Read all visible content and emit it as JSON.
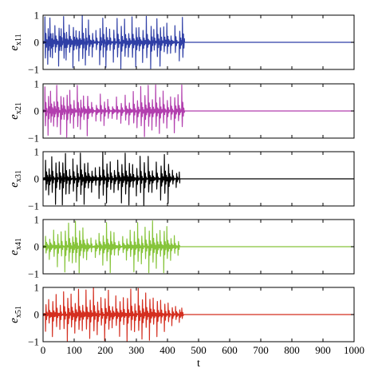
{
  "chart_data": {
    "type": "line",
    "xlabel": "t",
    "xlim": [
      0,
      1000
    ],
    "x_ticks": [
      "0",
      "100",
      "200",
      "300",
      "400",
      "500",
      "600",
      "700",
      "800",
      "900",
      "1000"
    ],
    "panels": [
      {
        "ylabel_main": "e",
        "ylabel_sub": "x11",
        "ylim": [
          -1,
          1
        ],
        "y_ticks": [
          "1",
          "0",
          "−1"
        ],
        "color": "#2f3fa6",
        "settle_time": 455,
        "events": [
          [
            6,
            0.9
          ],
          [
            15,
            -0.8
          ],
          [
            22,
            0.95
          ],
          [
            30,
            -0.5
          ],
          [
            38,
            0.6
          ],
          [
            50,
            -0.9
          ],
          [
            58,
            0.4
          ],
          [
            66,
            0.95
          ],
          [
            74,
            -0.6
          ],
          [
            84,
            0.7
          ],
          [
            96,
            -0.95
          ],
          [
            106,
            0.5
          ],
          [
            115,
            -0.7
          ],
          [
            126,
            0.95
          ],
          [
            136,
            -0.85
          ],
          [
            146,
            0.85
          ],
          [
            158,
            -0.5
          ],
          [
            170,
            0.4
          ],
          [
            182,
            -0.8
          ],
          [
            192,
            0.9
          ],
          [
            202,
            -0.95
          ],
          [
            214,
            0.45
          ],
          [
            226,
            -0.7
          ],
          [
            238,
            0.85
          ],
          [
            250,
            -0.95
          ],
          [
            262,
            0.85
          ],
          [
            274,
            -0.55
          ],
          [
            286,
            0.95
          ],
          [
            298,
            -0.9
          ],
          [
            308,
            0.6
          ],
          [
            320,
            -0.75
          ],
          [
            332,
            0.95
          ],
          [
            346,
            -0.95
          ],
          [
            356,
            0.5
          ],
          [
            366,
            0.85
          ],
          [
            376,
            -0.9
          ],
          [
            388,
            0.55
          ],
          [
            398,
            0.7
          ],
          [
            410,
            -0.4
          ],
          [
            424,
            0.6
          ],
          [
            438,
            -0.7
          ],
          [
            448,
            0.95
          ]
        ]
      },
      {
        "ylabel_main": "e",
        "ylabel_sub": "x21",
        "ylim": [
          -1,
          1
        ],
        "y_ticks": [
          "1",
          "0",
          "−1"
        ],
        "color": "#b23fae",
        "settle_time": 455,
        "events": [
          [
            6,
            0.85
          ],
          [
            16,
            -0.9
          ],
          [
            24,
            0.7
          ],
          [
            34,
            -0.6
          ],
          [
            44,
            0.95
          ],
          [
            56,
            -0.85
          ],
          [
            66,
            0.5
          ],
          [
            76,
            -0.95
          ],
          [
            86,
            0.8
          ],
          [
            98,
            -0.6
          ],
          [
            110,
            0.9
          ],
          [
            120,
            -0.7
          ],
          [
            130,
            0.6
          ],
          [
            142,
            -0.9
          ],
          [
            156,
            0.3
          ],
          [
            170,
            -0.4
          ],
          [
            184,
            0.6
          ],
          [
            196,
            -0.5
          ],
          [
            208,
            0.4
          ],
          [
            222,
            -0.3
          ],
          [
            236,
            0.5
          ],
          [
            250,
            -0.45
          ],
          [
            264,
            0.6
          ],
          [
            276,
            -0.5
          ],
          [
            290,
            0.7
          ],
          [
            302,
            -0.6
          ],
          [
            314,
            0.9
          ],
          [
            326,
            -0.95
          ],
          [
            338,
            0.95
          ],
          [
            350,
            -0.7
          ],
          [
            362,
            0.95
          ],
          [
            374,
            -0.8
          ],
          [
            386,
            0.7
          ],
          [
            398,
            -0.6
          ],
          [
            410,
            0.5
          ],
          [
            422,
            -0.8
          ],
          [
            434,
            0.6
          ],
          [
            446,
            0.95
          ]
        ]
      },
      {
        "ylabel_main": "e",
        "ylabel_sub": "x31",
        "ylim": [
          -1,
          1
        ],
        "y_ticks": [
          "1",
          "0",
          "−1"
        ],
        "color": "#000000",
        "settle_time": 440,
        "events": [
          [
            8,
            0.7
          ],
          [
            18,
            -0.6
          ],
          [
            28,
            0.8
          ],
          [
            40,
            -0.9
          ],
          [
            52,
            0.6
          ],
          [
            62,
            -0.95
          ],
          [
            72,
            0.95
          ],
          [
            84,
            -0.5
          ],
          [
            96,
            0.7
          ],
          [
            108,
            -0.8
          ],
          [
            120,
            0.95
          ],
          [
            132,
            -0.95
          ],
          [
            144,
            0.6
          ],
          [
            156,
            -0.5
          ],
          [
            168,
            0.4
          ],
          [
            180,
            -0.7
          ],
          [
            192,
            0.95
          ],
          [
            204,
            -0.85
          ],
          [
            216,
            0.6
          ],
          [
            228,
            -0.5
          ],
          [
            240,
            0.7
          ],
          [
            252,
            -0.9
          ],
          [
            264,
            0.95
          ],
          [
            276,
            -0.95
          ],
          [
            288,
            0.5
          ],
          [
            300,
            -0.6
          ],
          [
            312,
            0.8
          ],
          [
            324,
            -0.95
          ],
          [
            338,
            0.85
          ],
          [
            350,
            -0.5
          ],
          [
            364,
            0.6
          ],
          [
            378,
            -0.8
          ],
          [
            390,
            0.9
          ],
          [
            402,
            -0.9
          ],
          [
            416,
            0.3
          ],
          [
            428,
            -0.3
          ],
          [
            438,
            0.25
          ]
        ]
      },
      {
        "ylabel_main": "e",
        "ylabel_sub": "x41",
        "ylim": [
          -1,
          1
        ],
        "y_ticks": [
          "1",
          "0",
          "−1"
        ],
        "color": "#86c43a",
        "settle_time": 440,
        "events": [
          [
            8,
            0.4
          ],
          [
            20,
            -0.5
          ],
          [
            34,
            0.6
          ],
          [
            46,
            -0.7
          ],
          [
            58,
            0.5
          ],
          [
            70,
            -0.9
          ],
          [
            82,
            0.85
          ],
          [
            94,
            -0.6
          ],
          [
            104,
            0.95
          ],
          [
            116,
            -0.95
          ],
          [
            128,
            0.7
          ],
          [
            140,
            -0.5
          ],
          [
            154,
            0.3
          ],
          [
            168,
            -0.4
          ],
          [
            180,
            0.5
          ],
          [
            192,
            -0.7
          ],
          [
            204,
            0.9
          ],
          [
            216,
            -0.95
          ],
          [
            228,
            0.5
          ],
          [
            242,
            -0.3
          ],
          [
            256,
            0.4
          ],
          [
            268,
            -0.5
          ],
          [
            280,
            0.6
          ],
          [
            292,
            -0.9
          ],
          [
            304,
            0.85
          ],
          [
            316,
            -0.6
          ],
          [
            328,
            0.7
          ],
          [
            340,
            -0.95
          ],
          [
            352,
            0.95
          ],
          [
            364,
            -0.8
          ],
          [
            376,
            0.6
          ],
          [
            388,
            -0.95
          ],
          [
            398,
            0.8
          ],
          [
            410,
            -0.5
          ],
          [
            422,
            0.4
          ],
          [
            434,
            -0.3
          ]
        ]
      },
      {
        "ylabel_main": "e",
        "ylabel_sub": "x51",
        "ylim": [
          -1,
          1
        ],
        "y_ticks": [
          "1",
          "0",
          "−1"
        ],
        "color": "#d42e1f",
        "settle_time": 452,
        "events": [
          [
            8,
            -0.6
          ],
          [
            18,
            0.6
          ],
          [
            30,
            -0.8
          ],
          [
            42,
            0.7
          ],
          [
            54,
            -0.5
          ],
          [
            66,
            0.8
          ],
          [
            78,
            -0.95
          ],
          [
            90,
            0.75
          ],
          [
            102,
            -0.7
          ],
          [
            114,
            0.95
          ],
          [
            126,
            -0.6
          ],
          [
            138,
            0.9
          ],
          [
            150,
            -0.85
          ],
          [
            162,
            0.95
          ],
          [
            174,
            -0.7
          ],
          [
            186,
            0.6
          ],
          [
            198,
            -0.95
          ],
          [
            210,
            0.9
          ],
          [
            222,
            -0.5
          ],
          [
            234,
            0.7
          ],
          [
            246,
            -0.8
          ],
          [
            258,
            0.6
          ],
          [
            270,
            -0.95
          ],
          [
            282,
            0.9
          ],
          [
            294,
            -0.6
          ],
          [
            306,
            0.95
          ],
          [
            318,
            -0.9
          ],
          [
            330,
            0.8
          ],
          [
            342,
            -0.95
          ],
          [
            354,
            0.6
          ],
          [
            366,
            -0.8
          ],
          [
            378,
            0.5
          ],
          [
            390,
            -0.6
          ],
          [
            402,
            0.4
          ],
          [
            414,
            -0.4
          ],
          [
            426,
            0.3
          ],
          [
            438,
            -0.3
          ],
          [
            446,
            0.2
          ]
        ]
      }
    ]
  }
}
